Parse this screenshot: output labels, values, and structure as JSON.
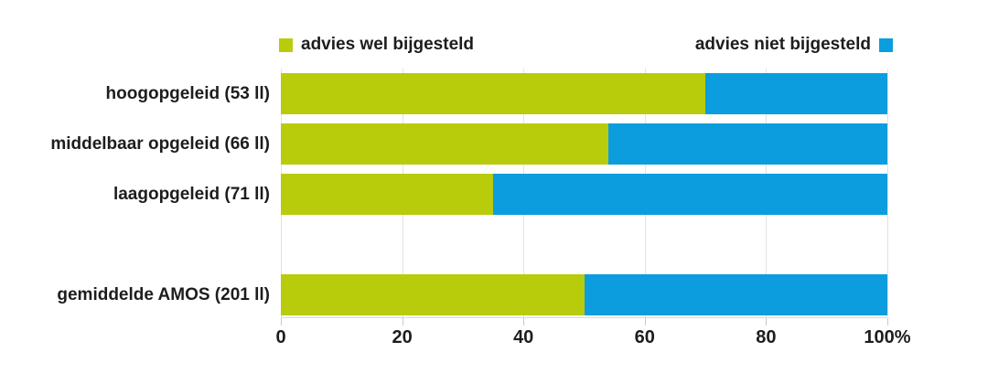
{
  "colors": {
    "green": "#b8cc0c",
    "blue": "#0b9dde",
    "grid": "#e2e2e2",
    "text": "#1d1d1b",
    "background": "#ffffff"
  },
  "legend": {
    "wel_label": "advies wel bijgesteld",
    "niet_label": "advies niet bijgesteld"
  },
  "chart_data": {
    "type": "bar",
    "orientation": "horizontal",
    "stacked": true,
    "title": "",
    "xlabel": "",
    "ylabel": "",
    "categories": [
      "hoogopgeleid (53 ll)",
      "middelbaar opgeleid (66 ll)",
      "laagopgeleid (71 ll)",
      "gemiddelde AMOS (201 ll)"
    ],
    "series": [
      {
        "name": "advies wel bijgesteld",
        "color": "#b8cc0c",
        "values": [
          70,
          54,
          35,
          50
        ]
      },
      {
        "name": "advies niet bijgesteld",
        "color": "#0b9dde",
        "values": [
          30,
          46,
          65,
          50
        ]
      }
    ],
    "xlim": [
      0,
      100
    ],
    "xticks": [
      0,
      20,
      40,
      60,
      80,
      100
    ],
    "xtick_labels": [
      "0",
      "20",
      "40",
      "60",
      "80",
      "100%"
    ],
    "grid": "vertical",
    "legend_position": "top",
    "gap_before_last_row": true
  }
}
